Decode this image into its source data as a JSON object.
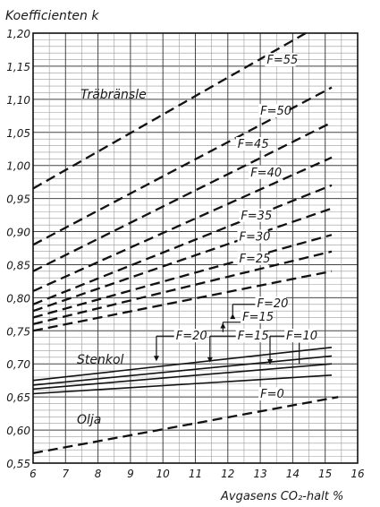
{
  "chart_data": {
    "type": "line",
    "ylabel": "Koefficienten k",
    "xlabel": "Avgasens CO₂-halt %",
    "xlim": [
      6,
      16
    ],
    "ylim": [
      0.55,
      1.2
    ],
    "x_ticks": [
      "6",
      "7",
      "8",
      "9",
      "10",
      "11",
      "12",
      "13",
      "14",
      "15",
      "16"
    ],
    "y_ticks": [
      "0,55",
      "0,60",
      "0,65",
      "0,70",
      "0,75",
      "0,80",
      "0,85",
      "0,90",
      "0,95",
      "1,00",
      "1,05",
      "1,10",
      "1,15",
      "1,20"
    ],
    "grid": true,
    "annotations": {
      "wood": "Träbränsle",
      "coal": "Stenkol",
      "oil": "Olja"
    },
    "series": [
      {
        "name": "F=55",
        "group": "wood",
        "style": "dashed",
        "x": [
          6,
          14.4
        ],
        "y": [
          0.965,
          1.2
        ]
      },
      {
        "name": "F=50",
        "group": "wood",
        "style": "dashed",
        "x": [
          6,
          15.2
        ],
        "y": [
          0.88,
          1.118
        ]
      },
      {
        "name": "F=45",
        "group": "wood",
        "style": "dashed",
        "x": [
          6,
          15.2
        ],
        "y": [
          0.84,
          1.065
        ]
      },
      {
        "name": "F=40",
        "group": "wood",
        "style": "dashed",
        "x": [
          6,
          15.2
        ],
        "y": [
          0.81,
          1.012
        ]
      },
      {
        "name": "F=35",
        "group": "wood",
        "style": "dashed",
        "x": [
          6,
          15.2
        ],
        "y": [
          0.79,
          0.97
        ]
      },
      {
        "name": "F=30",
        "group": "wood",
        "style": "dashed",
        "x": [
          6,
          15.2
        ],
        "y": [
          0.78,
          0.935
        ]
      },
      {
        "name": "F=25",
        "group": "wood",
        "style": "dashed",
        "x": [
          6,
          15.2
        ],
        "y": [
          0.77,
          0.895
        ]
      },
      {
        "name": "F=20",
        "group": "wood",
        "style": "dashed",
        "x": [
          6,
          15.2
        ],
        "y": [
          0.76,
          0.87
        ]
      },
      {
        "name": "F=15",
        "group": "wood",
        "style": "dashed",
        "x": [
          6,
          15.2
        ],
        "y": [
          0.75,
          0.84
        ]
      },
      {
        "name": "F=20",
        "group": "coal",
        "style": "solid",
        "x": [
          6,
          15.2
        ],
        "y": [
          0.675,
          0.725
        ]
      },
      {
        "name": "F=15",
        "group": "coal",
        "style": "solid",
        "x": [
          6,
          15.2
        ],
        "y": [
          0.668,
          0.712
        ]
      },
      {
        "name": "F=10",
        "group": "coal",
        "style": "solid",
        "x": [
          6,
          15.2
        ],
        "y": [
          0.662,
          0.7
        ]
      },
      {
        "name": "F=0",
        "group": "coal",
        "style": "solid",
        "x": [
          6,
          15.2
        ],
        "y": [
          0.655,
          0.683
        ]
      },
      {
        "name": "",
        "group": "oil",
        "style": "dashed",
        "x": [
          6,
          15.4
        ],
        "y": [
          0.565,
          0.65
        ]
      }
    ],
    "labels": [
      {
        "text": "F=55",
        "x": 13.2,
        "y": 1.155
      },
      {
        "text": "F=50",
        "x": 13.0,
        "y": 1.078
      },
      {
        "text": "F=45",
        "x": 12.3,
        "y": 1.028
      },
      {
        "text": "F=40",
        "x": 12.7,
        "y": 0.985
      },
      {
        "text": "F=35",
        "x": 12.4,
        "y": 0.92
      },
      {
        "text": "F=30",
        "x": 12.35,
        "y": 0.888
      },
      {
        "text": "F=25",
        "x": 12.35,
        "y": 0.855
      },
      {
        "text": "F=20",
        "x": 12.9,
        "y": 0.787
      },
      {
        "text": "F=15",
        "x": 12.45,
        "y": 0.767
      },
      {
        "text": "F=20",
        "x": 10.4,
        "y": 0.738
      },
      {
        "text": "F=15",
        "x": 12.3,
        "y": 0.738
      },
      {
        "text": "F=10",
        "x": 13.8,
        "y": 0.738
      },
      {
        "text": "F=0",
        "x": 13.0,
        "y": 0.65
      }
    ]
  }
}
